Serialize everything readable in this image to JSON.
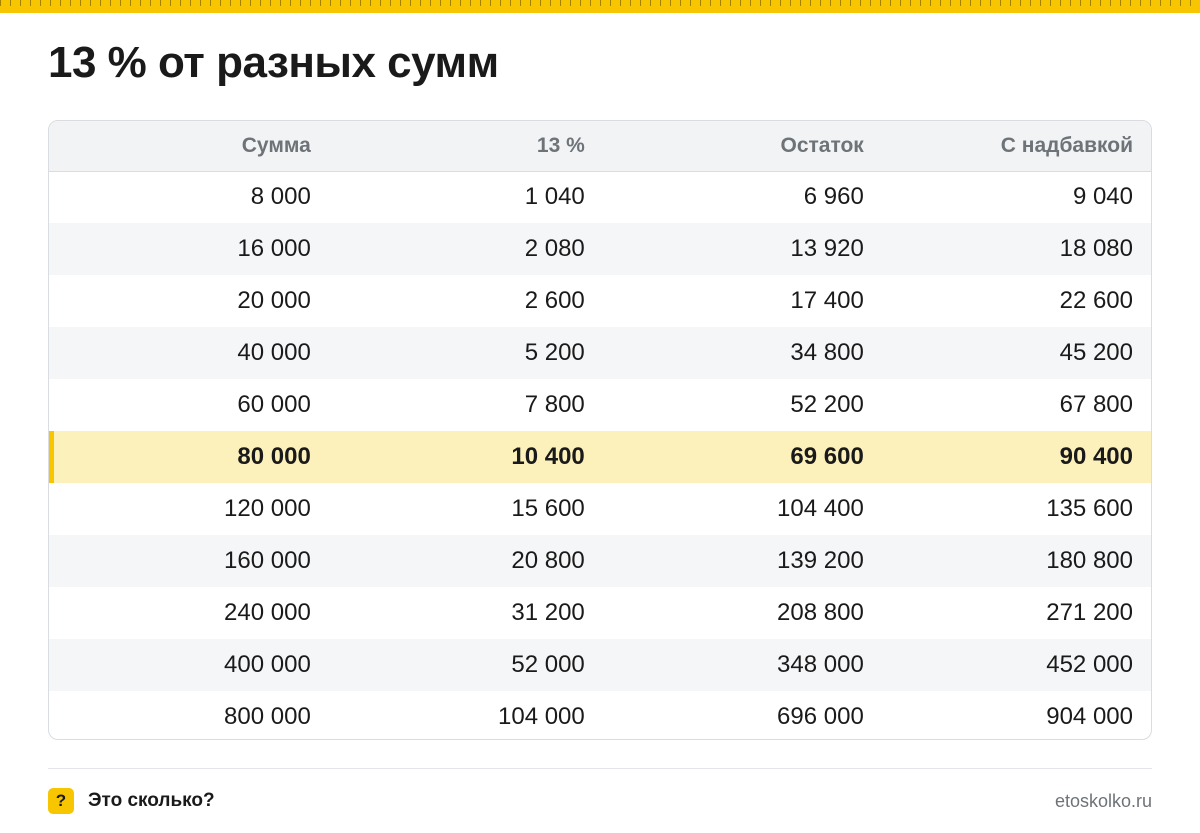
{
  "title": "13 % от разных сумм",
  "colors": {
    "accent": "#f7c600",
    "highlight_row": "#fdf1bb",
    "header_text": "#6e7378"
  },
  "table": {
    "headers": [
      "Сумма",
      "13 %",
      "Остаток",
      "С надбавкой"
    ],
    "highlight_row_index": 5,
    "rows": [
      [
        "8 000",
        "1 040",
        "6 960",
        "9 040"
      ],
      [
        "16 000",
        "2 080",
        "13 920",
        "18 080"
      ],
      [
        "20 000",
        "2 600",
        "17 400",
        "22 600"
      ],
      [
        "40 000",
        "5 200",
        "34 800",
        "45 200"
      ],
      [
        "60 000",
        "7 800",
        "52 200",
        "67 800"
      ],
      [
        "80 000",
        "10 400",
        "69 600",
        "90 400"
      ],
      [
        "120 000",
        "15 600",
        "104 400",
        "135 600"
      ],
      [
        "160 000",
        "20 800",
        "139 200",
        "180 800"
      ],
      [
        "240 000",
        "31 200",
        "208 800",
        "271 200"
      ],
      [
        "400 000",
        "52 000",
        "348 000",
        "452 000"
      ],
      [
        "800 000",
        "104 000",
        "696 000",
        "904 000"
      ]
    ]
  },
  "footer": {
    "icon": "question-icon",
    "icon_glyph": "?",
    "brand": "Это сколько?",
    "site": "etoskolko.ru"
  }
}
